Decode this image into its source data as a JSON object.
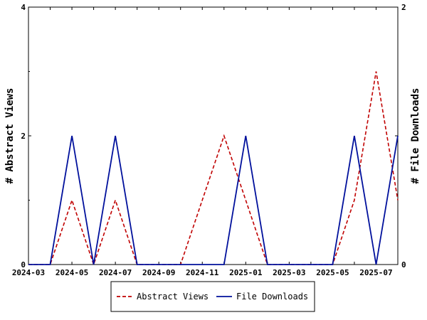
{
  "chart_data": {
    "type": "line",
    "x": [
      "2024-03",
      "2024-04",
      "2024-05",
      "2024-06",
      "2024-07",
      "2024-08",
      "2024-09",
      "2024-10",
      "2024-11",
      "2024-12",
      "2025-01",
      "2025-02",
      "2025-03",
      "2025-04",
      "2025-05",
      "2025-06",
      "2025-07",
      "2025-08"
    ],
    "x_tick_labels": [
      "2024-03",
      "2024-05",
      "2024-07",
      "2024-09",
      "2024-11",
      "2025-01",
      "2025-03",
      "2025-05",
      "2025-07"
    ],
    "series": [
      {
        "name": "Abstract Views",
        "axis": "left",
        "color": "#c00000",
        "style": "dashed",
        "values": [
          0,
          0,
          1,
          0,
          1,
          0,
          0,
          0,
          1,
          2,
          1,
          0,
          0,
          0,
          0,
          1,
          3,
          1
        ]
      },
      {
        "name": "File Downloads",
        "axis": "right",
        "color": "#00109c",
        "style": "solid",
        "values": [
          0,
          0,
          1,
          0,
          1,
          0,
          0,
          0,
          0,
          0,
          1,
          0,
          0,
          0,
          0,
          1,
          0,
          1
        ]
      }
    ],
    "ylabel": "# Abstract Views",
    "ylim": [
      0,
      4
    ],
    "y_ticks": [
      0,
      2,
      4
    ],
    "y2label": "# File Downloads",
    "y2lim": [
      0,
      2
    ],
    "y2_ticks": [
      0,
      1,
      2
    ],
    "y2_tick_labels": [
      "0",
      "",
      "2"
    ],
    "grid": false,
    "legend_position": "bottom-center"
  }
}
